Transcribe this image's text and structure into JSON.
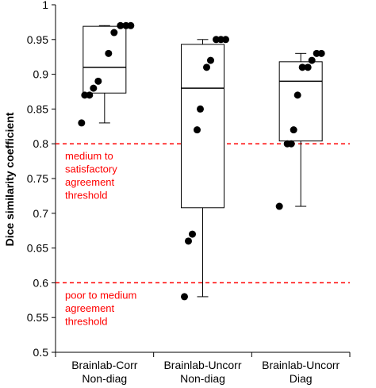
{
  "chart_data": {
    "type": "boxplot",
    "ylabel": "Dice similarity coefficient",
    "xlabel": "",
    "ylim": [
      0.5,
      1
    ],
    "yticks": [
      0.5,
      0.55,
      0.6,
      0.65,
      0.7,
      0.75,
      0.8,
      0.85,
      0.9,
      0.95,
      1
    ],
    "ytick_labels": [
      "0.5",
      "0.55",
      "0.6",
      "0.65",
      "0.7",
      "0.75",
      "0.8",
      "0.85",
      "0.9",
      "0.95",
      "1"
    ],
    "grid": false,
    "categories": [
      [
        "Brainlab-Corr",
        "Non-diag"
      ],
      [
        "Brainlab-Uncorr",
        "Non-diag"
      ],
      [
        "Brainlab-Uncorr",
        "Diag"
      ]
    ],
    "boxes": [
      {
        "whisker_low": 0.83,
        "q1": 0.873,
        "median": 0.91,
        "q3": 0.969,
        "whisker_high": 0.97
      },
      {
        "whisker_low": 0.58,
        "q1": 0.708,
        "median": 0.88,
        "q3": 0.943,
        "whisker_high": 0.95
      },
      {
        "whisker_low": 0.71,
        "q1": 0.804,
        "median": 0.89,
        "q3": 0.918,
        "whisker_high": 0.93
      }
    ],
    "points": [
      [
        0.83,
        0.87,
        0.87,
        0.88,
        0.89,
        0.93,
        0.96,
        0.97,
        0.97,
        0.97
      ],
      [
        0.58,
        0.66,
        0.67,
        0.82,
        0.85,
        0.91,
        0.92,
        0.95,
        0.95,
        0.95
      ],
      [
        0.71,
        0.8,
        0.8,
        0.82,
        0.87,
        0.91,
        0.91,
        0.92,
        0.93,
        0.93
      ]
    ],
    "thresholds": [
      {
        "value": 0.8,
        "label": [
          "medium to",
          "satisfactory",
          "agreement",
          "threshold"
        ]
      },
      {
        "value": 0.6,
        "label": [
          "poor to medium",
          "agreement",
          "threshold"
        ]
      }
    ],
    "colors": {
      "threshold": "#ff0000",
      "box": "#000000",
      "point": "#000000"
    }
  }
}
